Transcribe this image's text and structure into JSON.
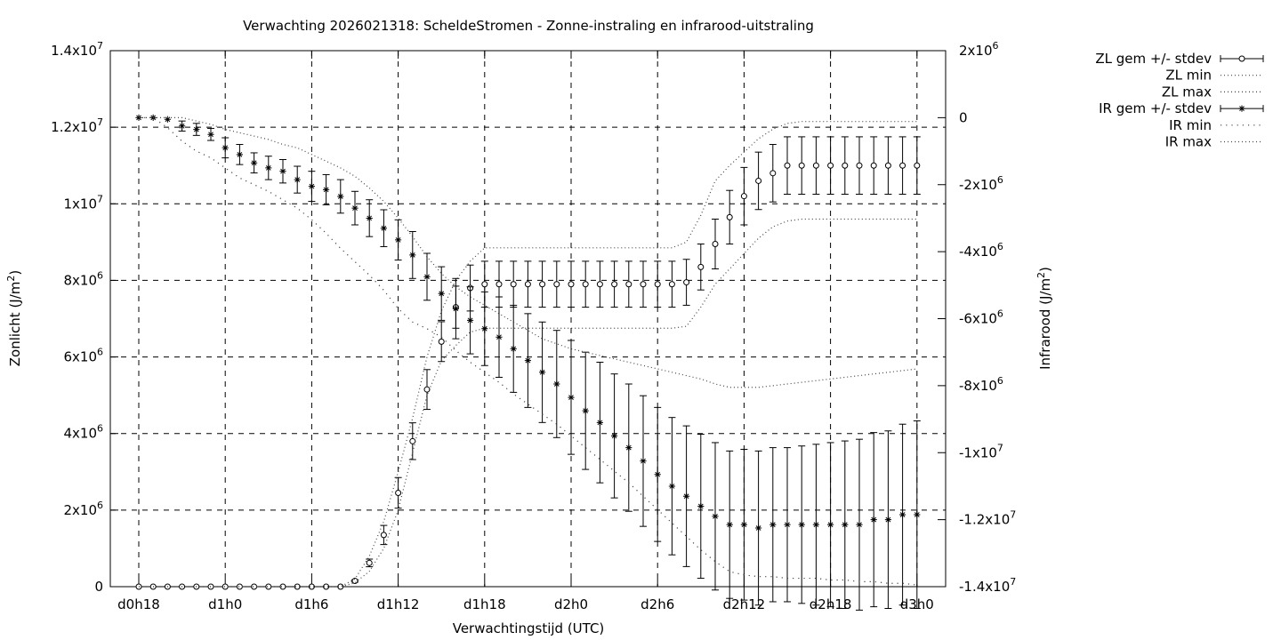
{
  "chart_data": {
    "type": "line",
    "title": "Verwachting 2026021318: ScheldeStromen - Zonne-instraling en infrarood-uitstraling",
    "xlabel": "Verwachtingstijd (UTC)",
    "ylabel": "Zonlicht (J/m²)",
    "y2label": "Infrarood (J/m²)",
    "ylabel_parts": [
      "Zonlicht (J/m",
      "2",
      ")"
    ],
    "y2label_parts": [
      "Infrarood (J/m",
      "2",
      ")"
    ],
    "x_unit": "hours since d0h18",
    "x_range": [
      -1.3,
      58.7
    ],
    "x_ticks": [
      {
        "x": 0,
        "label": "d0h18"
      },
      {
        "x": 6,
        "label": "d1h0"
      },
      {
        "x": 12,
        "label": "d1h6"
      },
      {
        "x": 18,
        "label": "d1h12"
      },
      {
        "x": 24,
        "label": "d1h18"
      },
      {
        "x": 30,
        "label": "d2h0"
      },
      {
        "x": 36,
        "label": "d2h6"
      },
      {
        "x": 42,
        "label": "d2h12"
      },
      {
        "x": 48,
        "label": "d2h18"
      },
      {
        "x": 54,
        "label": "d3h0"
      }
    ],
    "ylim": [
      0,
      14000000
    ],
    "y_ticks": [
      {
        "v": 0,
        "m": "0",
        "e": ""
      },
      {
        "v": 2000000,
        "m": "2x10",
        "e": "6"
      },
      {
        "v": 4000000,
        "m": "4x10",
        "e": "6"
      },
      {
        "v": 6000000,
        "m": "6x10",
        "e": "6"
      },
      {
        "v": 8000000,
        "m": "8x10",
        "e": "6"
      },
      {
        "v": 10000000,
        "m": "1x10",
        "e": "7"
      },
      {
        "v": 12000000,
        "m": "1.2x10",
        "e": "7"
      },
      {
        "v": 14000000,
        "m": "1.4x10",
        "e": "7"
      }
    ],
    "y2lim": [
      -14000000,
      2000000
    ],
    "y2_ticks": [
      {
        "v": 2000000,
        "m": "2x10",
        "e": "6"
      },
      {
        "v": 0,
        "m": "0",
        "e": ""
      },
      {
        "v": -2000000,
        "m": "-2x10",
        "e": "6"
      },
      {
        "v": -4000000,
        "m": "-4x10",
        "e": "6"
      },
      {
        "v": -6000000,
        "m": "-6x10",
        "e": "6"
      },
      {
        "v": -8000000,
        "m": "-8x10",
        "e": "6"
      },
      {
        "v": -10000000,
        "m": "-1x10",
        "e": "7"
      },
      {
        "v": -12000000,
        "m": "-1.2x10",
        "e": "7"
      },
      {
        "v": -14000000,
        "m": "-1.4x10",
        "e": "7"
      }
    ],
    "grid": true,
    "legend_position": "top-right, outside plot",
    "x": [
      0,
      1,
      2,
      3,
      4,
      5,
      6,
      7,
      8,
      9,
      10,
      11,
      12,
      13,
      14,
      15,
      16,
      17,
      18,
      19,
      20,
      21,
      22,
      23,
      24,
      25,
      26,
      27,
      28,
      29,
      30,
      31,
      32,
      33,
      34,
      35,
      36,
      37,
      38,
      39,
      40,
      41,
      42,
      43,
      44,
      45,
      46,
      47,
      48,
      49,
      50,
      51,
      52,
      53,
      54
    ],
    "series": [
      {
        "name": "ZL gem +/- stdev",
        "axis": "y1",
        "marker": "circle",
        "values": [
          0,
          0,
          0,
          0,
          0,
          0,
          0,
          0,
          0,
          0,
          0,
          0,
          0,
          0,
          0,
          150000,
          620000,
          1350000,
          2450000,
          3800000,
          5150000,
          6400000,
          7300000,
          7800000,
          7900000,
          7900000,
          7900000,
          7900000,
          7900000,
          7900000,
          7900000,
          7900000,
          7900000,
          7900000,
          7900000,
          7900000,
          7900000,
          7900000,
          7950000,
          8350000,
          8950000,
          9650000,
          10200000,
          10600000,
          10800000,
          11000000,
          11000000,
          11000000,
          11000000,
          11000000,
          11000000,
          11000000,
          11000000,
          11000000,
          11000000
        ],
        "stdev": [
          0,
          0,
          0,
          0,
          0,
          0,
          0,
          0,
          0,
          0,
          0,
          0,
          0,
          0,
          0,
          30000,
          100000,
          250000,
          400000,
          480000,
          520000,
          520000,
          550000,
          600000,
          600000,
          600000,
          600000,
          600000,
          600000,
          600000,
          600000,
          600000,
          600000,
          600000,
          600000,
          600000,
          600000,
          600000,
          600000,
          600000,
          650000,
          700000,
          750000,
          750000,
          750000,
          750000,
          750000,
          750000,
          750000,
          750000,
          750000,
          750000,
          750000,
          750000,
          750000
        ]
      },
      {
        "name": "ZL min",
        "axis": "y1",
        "style": "dotted",
        "values": [
          0,
          0,
          0,
          0,
          0,
          0,
          0,
          0,
          0,
          0,
          0,
          0,
          0,
          0,
          0,
          100000,
          400000,
          1000000,
          2000000,
          3500000,
          5000000,
          5900000,
          6300000,
          6650000,
          6750000,
          6750000,
          6750000,
          6750000,
          6750000,
          6750000,
          6750000,
          6750000,
          6750000,
          6750000,
          6750000,
          6750000,
          6750000,
          6750000,
          6800000,
          7300000,
          7900000,
          8300000,
          8700000,
          9100000,
          9400000,
          9550000,
          9600000,
          9600000,
          9600000,
          9600000,
          9600000,
          9600000,
          9600000,
          9600000,
          9600000
        ]
      },
      {
        "name": "ZL max",
        "axis": "y1",
        "style": "dotted",
        "values": [
          0,
          0,
          0,
          0,
          0,
          0,
          0,
          0,
          0,
          0,
          0,
          0,
          0,
          0,
          0,
          200000,
          800000,
          1700000,
          3000000,
          4400000,
          6000000,
          7200000,
          8000000,
          8500000,
          8850000,
          8850000,
          8850000,
          8850000,
          8850000,
          8850000,
          8850000,
          8850000,
          8850000,
          8850000,
          8850000,
          8850000,
          8850000,
          8850000,
          9000000,
          9700000,
          10600000,
          11000000,
          11350000,
          11700000,
          11950000,
          12100000,
          12150000,
          12150000,
          12150000,
          12150000,
          12150000,
          12150000,
          12150000,
          12150000,
          12150000
        ]
      },
      {
        "name": "IR gem +/- stdev",
        "axis": "y2",
        "marker": "star",
        "values": [
          0,
          0,
          -50000,
          -250000,
          -350000,
          -500000,
          -900000,
          -1100000,
          -1350000,
          -1500000,
          -1600000,
          -1850000,
          -2050000,
          -2150000,
          -2350000,
          -2700000,
          -3000000,
          -3300000,
          -3650000,
          -4100000,
          -4750000,
          -5250000,
          -5700000,
          -6050000,
          -6300000,
          -6550000,
          -6900000,
          -7250000,
          -7600000,
          -7950000,
          -8350000,
          -8750000,
          -9100000,
          -9500000,
          -9850000,
          -10250000,
          -10650000,
          -11000000,
          -11300000,
          -11600000,
          -11900000,
          -12150000,
          -12150000,
          -12250000,
          -12150000,
          -12150000,
          -12150000,
          -12150000,
          -12150000,
          -12150000,
          -12150000,
          -12000000,
          -12000000,
          -11850000,
          -11850000
        ],
        "stdev": [
          0,
          0,
          0,
          150000,
          180000,
          180000,
          300000,
          300000,
          300000,
          350000,
          350000,
          400000,
          450000,
          450000,
          500000,
          500000,
          550000,
          550000,
          600000,
          700000,
          700000,
          800000,
          900000,
          1000000,
          1100000,
          1200000,
          1300000,
          1400000,
          1500000,
          1600000,
          1700000,
          1750000,
          1800000,
          1850000,
          1900000,
          1950000,
          2000000,
          2050000,
          2100000,
          2150000,
          2200000,
          2200000,
          2250000,
          2300000,
          2300000,
          2300000,
          2350000,
          2400000,
          2450000,
          2500000,
          2550000,
          2600000,
          2650000,
          2700000,
          2800000
        ]
      },
      {
        "name": "IR min",
        "axis": "y2",
        "style": "dotted-coarse",
        "values": [
          0,
          0,
          -300000,
          -700000,
          -1000000,
          -1200000,
          -1500000,
          -1800000,
          -2000000,
          -2200000,
          -2450000,
          -2700000,
          -3050000,
          -3450000,
          -3900000,
          -4300000,
          -4700000,
          -5150000,
          -5700000,
          -6100000,
          -6300000,
          -6550000,
          -6950000,
          -7300000,
          -7600000,
          -7900000,
          -8250000,
          -8550000,
          -8850000,
          -9150000,
          -9500000,
          -9850000,
          -10200000,
          -10550000,
          -10900000,
          -11300000,
          -11700000,
          -12100000,
          -12500000,
          -12900000,
          -13250000,
          -13550000,
          -13650000,
          -13700000,
          -13700000,
          -13750000,
          -13750000,
          -13750000,
          -13800000,
          -13800000,
          -13850000,
          -13850000,
          -13900000,
          -13900000,
          -13950000
        ]
      },
      {
        "name": "IR max",
        "axis": "y2",
        "style": "dotted",
        "values": [
          0,
          0,
          0,
          0,
          -100000,
          -200000,
          -350000,
          -450000,
          -550000,
          -650000,
          -800000,
          -900000,
          -1100000,
          -1300000,
          -1500000,
          -1750000,
          -2100000,
          -2500000,
          -3000000,
          -3550000,
          -4150000,
          -4650000,
          -5050000,
          -5350000,
          -5600000,
          -5850000,
          -6100000,
          -6350000,
          -6600000,
          -6750000,
          -6900000,
          -7000000,
          -7100000,
          -7200000,
          -7300000,
          -7400000,
          -7500000,
          -7600000,
          -7700000,
          -7800000,
          -7950000,
          -8050000,
          -8050000,
          -8050000,
          -8000000,
          -7950000,
          -7900000,
          -7850000,
          -7800000,
          -7750000,
          -7700000,
          -7650000,
          -7600000,
          -7550000,
          -7500000
        ]
      }
    ]
  }
}
